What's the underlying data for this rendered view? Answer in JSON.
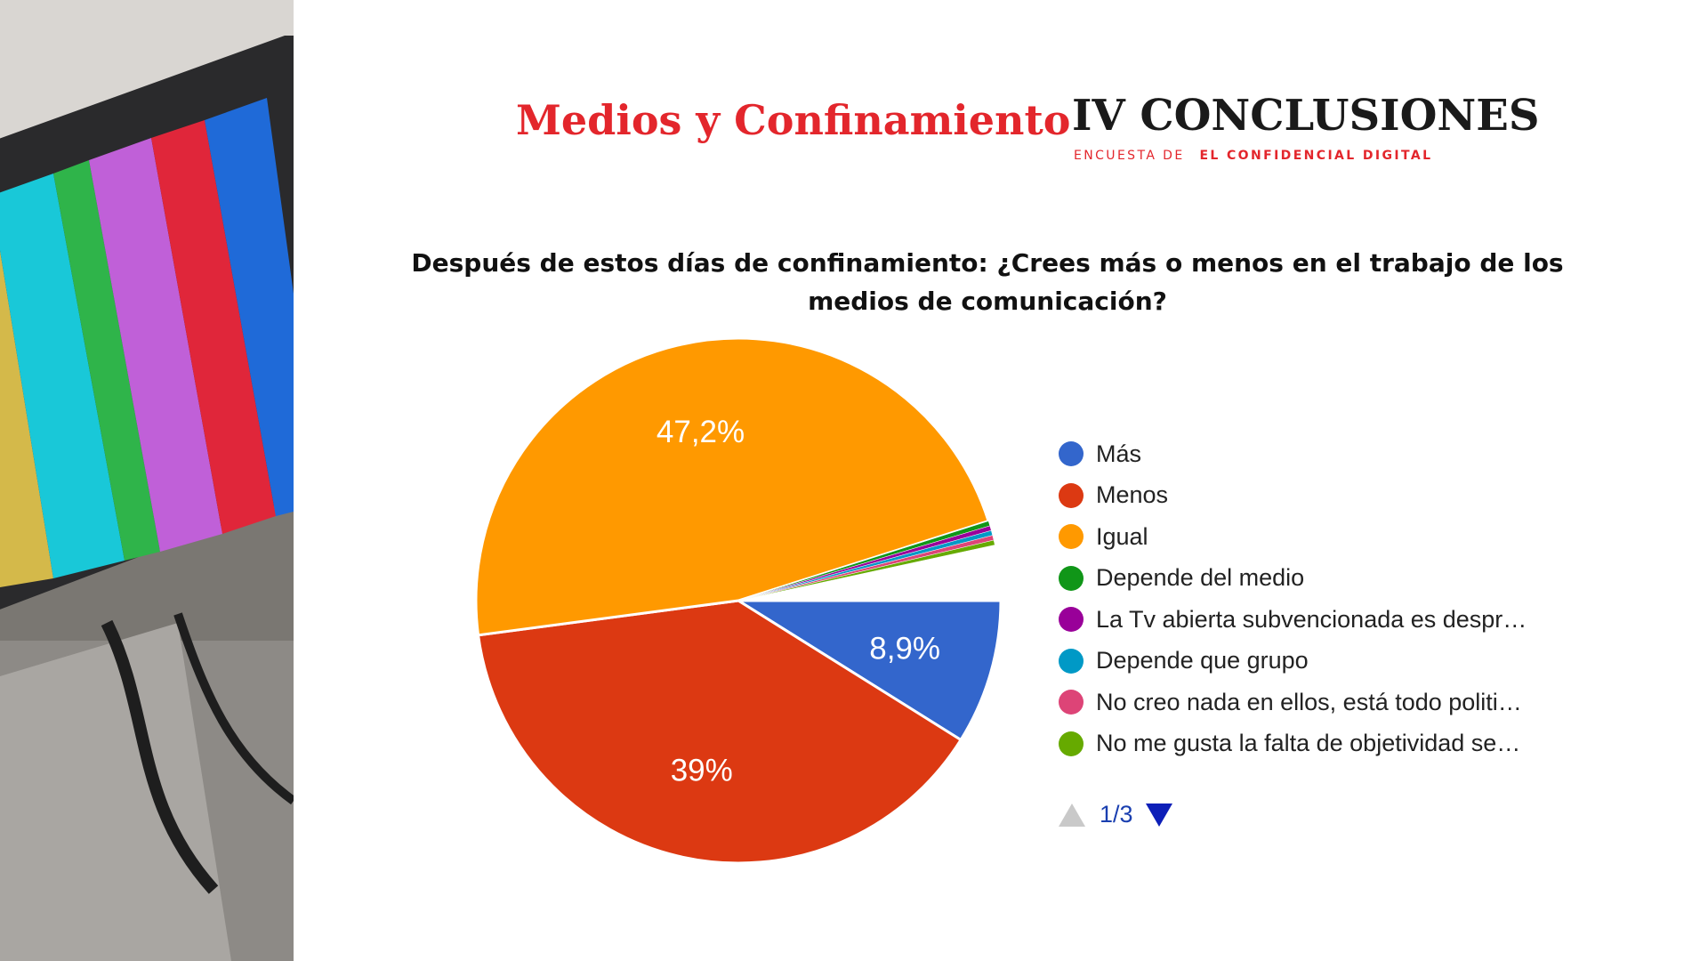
{
  "header": {
    "title_left": "Medios y Confinamiento",
    "title_right": "IV CONCLUSIONES",
    "subtitle_prefix": "ENCUESTA DE",
    "subtitle_brand": "EL CONFIDENCIAL DIGITAL"
  },
  "chart_data": {
    "type": "pie",
    "title": "Después de estos días de confinamiento: ¿Crees más o menos en el trabajo de los medios de comunicación?",
    "legend_position": "right",
    "slices": [
      {
        "label": "Más",
        "value": 8.9,
        "display": "8,9%",
        "color": "#3366cc"
      },
      {
        "label": "Menos",
        "value": 39,
        "display": "39%",
        "color": "#dc3912"
      },
      {
        "label": "Igual",
        "value": 47.2,
        "display": "47,2%",
        "color": "#ff9900"
      },
      {
        "label": "Depende del medio",
        "value": 0.3,
        "display": "",
        "color": "#109618"
      },
      {
        "label": "La Tv abierta subvencionada es despr…",
        "value": 0.3,
        "display": "",
        "color": "#990099"
      },
      {
        "label": "Depende que grupo",
        "value": 0.3,
        "display": "",
        "color": "#0099c6"
      },
      {
        "label": "No creo nada en ellos, está todo politi…",
        "value": 0.3,
        "display": "",
        "color": "#dd4477"
      },
      {
        "label": "No me gusta la falta de objetividad se…",
        "value": 0.3,
        "display": "",
        "color": "#66aa00"
      }
    ]
  },
  "legend": {
    "page": "1/3"
  }
}
